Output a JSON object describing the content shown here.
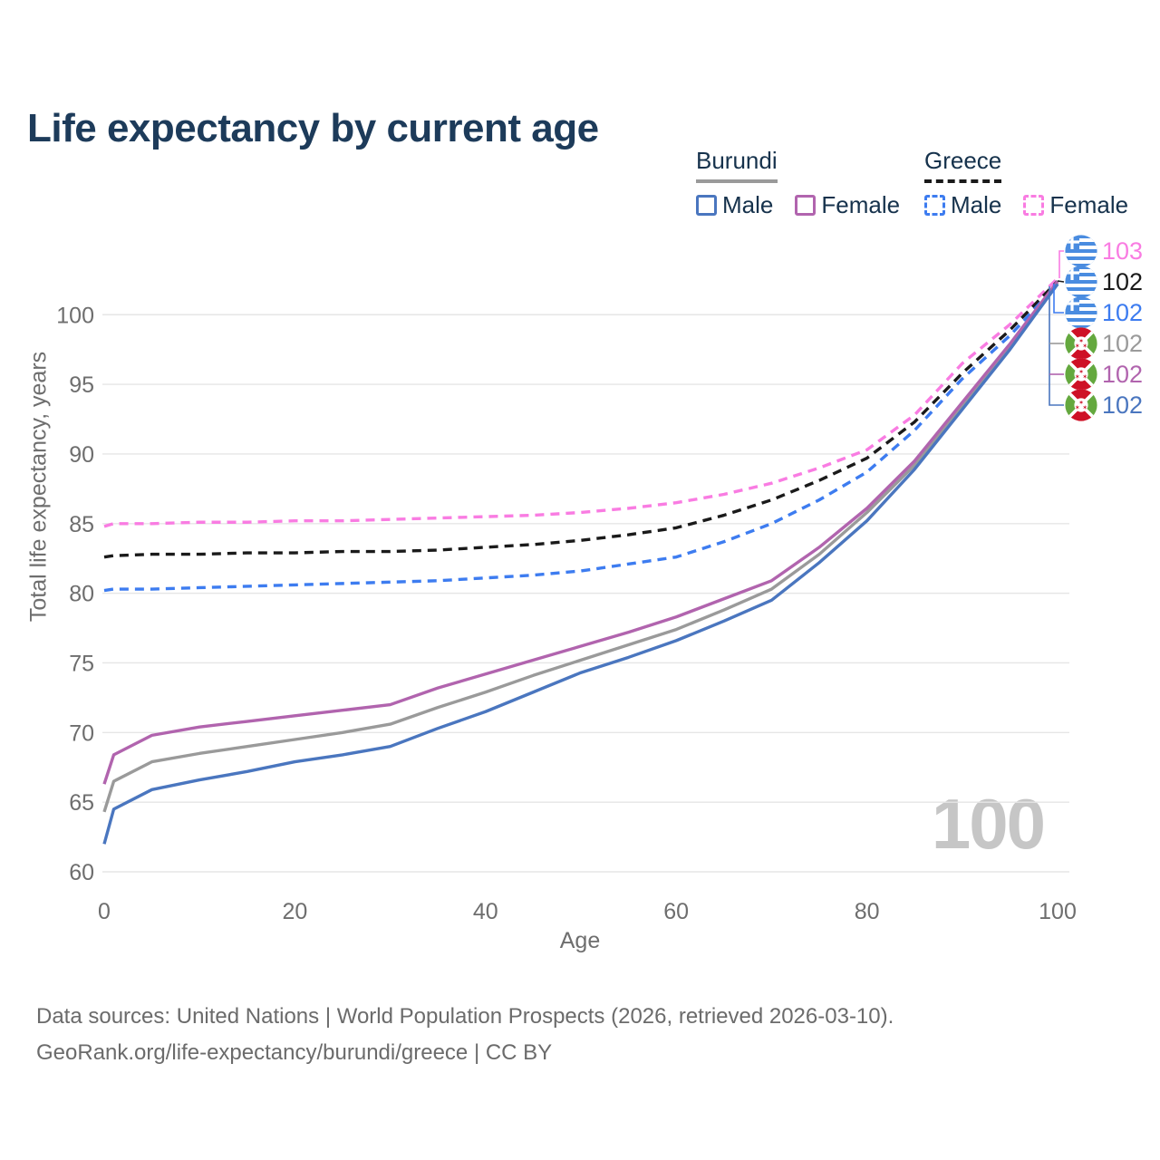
{
  "title": "Life expectancy by current age",
  "watermark": "100",
  "legend": {
    "groups": [
      {
        "country": "Burundi",
        "line_style": "solid",
        "underline_color": "#9a9a9a",
        "items": [
          {
            "label": "Male",
            "color": "#4a76bf"
          },
          {
            "label": "Female",
            "color": "#b164ae"
          }
        ]
      },
      {
        "country": "Greece",
        "line_style": "dashed",
        "underline_color": "#1a1a1a",
        "items": [
          {
            "label": "Male",
            "color": "#3d7cf0"
          },
          {
            "label": "Female",
            "color": "#f97ce2"
          }
        ]
      }
    ]
  },
  "chart_data": {
    "type": "line",
    "title": "Life expectancy by current age",
    "xlabel": "Age",
    "ylabel": "Total life expectancy, years",
    "xlim": [
      0,
      100
    ],
    "ylim": [
      60,
      103
    ],
    "x_ticks": [
      0,
      20,
      40,
      60,
      80,
      100
    ],
    "y_ticks": [
      60,
      65,
      70,
      75,
      80,
      85,
      90,
      95,
      100
    ],
    "grid": "horizontal",
    "legend_position": "top-right",
    "ages": [
      0,
      1,
      5,
      10,
      15,
      20,
      25,
      30,
      35,
      40,
      45,
      50,
      55,
      60,
      65,
      70,
      75,
      80,
      85,
      90,
      95,
      100
    ],
    "series": [
      {
        "name": "Greece Female",
        "country": "Greece",
        "sex": "Female",
        "flag": "greece",
        "color": "#f97ce2",
        "dash": true,
        "end_label": "103",
        "values": [
          84.8,
          85.0,
          85.0,
          85.1,
          85.1,
          85.2,
          85.2,
          85.3,
          85.4,
          85.5,
          85.6,
          85.8,
          86.1,
          86.5,
          87.1,
          87.9,
          89.0,
          90.3,
          92.8,
          96.5,
          99.3,
          102.6
        ]
      },
      {
        "name": "Greece Both sexes",
        "country": "Greece",
        "sex": "Both sexes",
        "flag": "greece",
        "color": "#1a1a1a",
        "dash": true,
        "end_label": "102",
        "values": [
          82.6,
          82.7,
          82.8,
          82.8,
          82.9,
          82.9,
          83.0,
          83.0,
          83.1,
          83.3,
          83.5,
          83.8,
          84.2,
          84.7,
          85.6,
          86.7,
          88.1,
          89.7,
          92.3,
          95.8,
          98.9,
          102.4
        ]
      },
      {
        "name": "Greece Male",
        "country": "Greece",
        "sex": "Male",
        "flag": "greece",
        "color": "#3d7cf0",
        "dash": true,
        "end_label": "102",
        "values": [
          80.2,
          80.3,
          80.3,
          80.4,
          80.5,
          80.6,
          80.7,
          80.8,
          80.9,
          81.1,
          81.3,
          81.6,
          82.1,
          82.6,
          83.7,
          85.0,
          86.7,
          88.7,
          91.7,
          95.4,
          98.5,
          102.2
        ]
      },
      {
        "name": "Burundi Both sexes",
        "country": "Burundi",
        "sex": "Both sexes",
        "flag": "burundi",
        "color": "#9a9a9a",
        "dash": false,
        "end_label": "102",
        "values": [
          64.3,
          66.5,
          67.9,
          68.5,
          69.0,
          69.5,
          70.0,
          70.6,
          71.8,
          72.9,
          74.1,
          75.2,
          76.3,
          77.4,
          78.8,
          80.3,
          82.8,
          85.8,
          89.2,
          93.5,
          97.7,
          102.3
        ]
      },
      {
        "name": "Burundi Female",
        "country": "Burundi",
        "sex": "Female",
        "flag": "burundi",
        "color": "#b164ae",
        "dash": false,
        "end_label": "102",
        "values": [
          66.3,
          68.4,
          69.8,
          70.4,
          70.8,
          71.2,
          71.6,
          72.0,
          73.2,
          74.2,
          75.2,
          76.2,
          77.2,
          78.3,
          79.6,
          80.9,
          83.3,
          86.1,
          89.5,
          93.7,
          97.9,
          102.4
        ]
      },
      {
        "name": "Burundi Male",
        "country": "Burundi",
        "sex": "Male",
        "flag": "burundi",
        "color": "#4a76bf",
        "dash": false,
        "end_label": "102",
        "values": [
          62.0,
          64.5,
          65.9,
          66.6,
          67.2,
          67.9,
          68.4,
          69.0,
          70.3,
          71.5,
          72.9,
          74.3,
          75.4,
          76.6,
          78.0,
          79.5,
          82.2,
          85.2,
          88.9,
          93.2,
          97.5,
          102.2
        ]
      }
    ]
  },
  "footer": {
    "line1": "Data sources: United Nations | World Population Prospects (2026, retrieved 2026-03-10).",
    "line2": "GeoRank.org/life-expectancy/burundi/greece | CC BY"
  }
}
